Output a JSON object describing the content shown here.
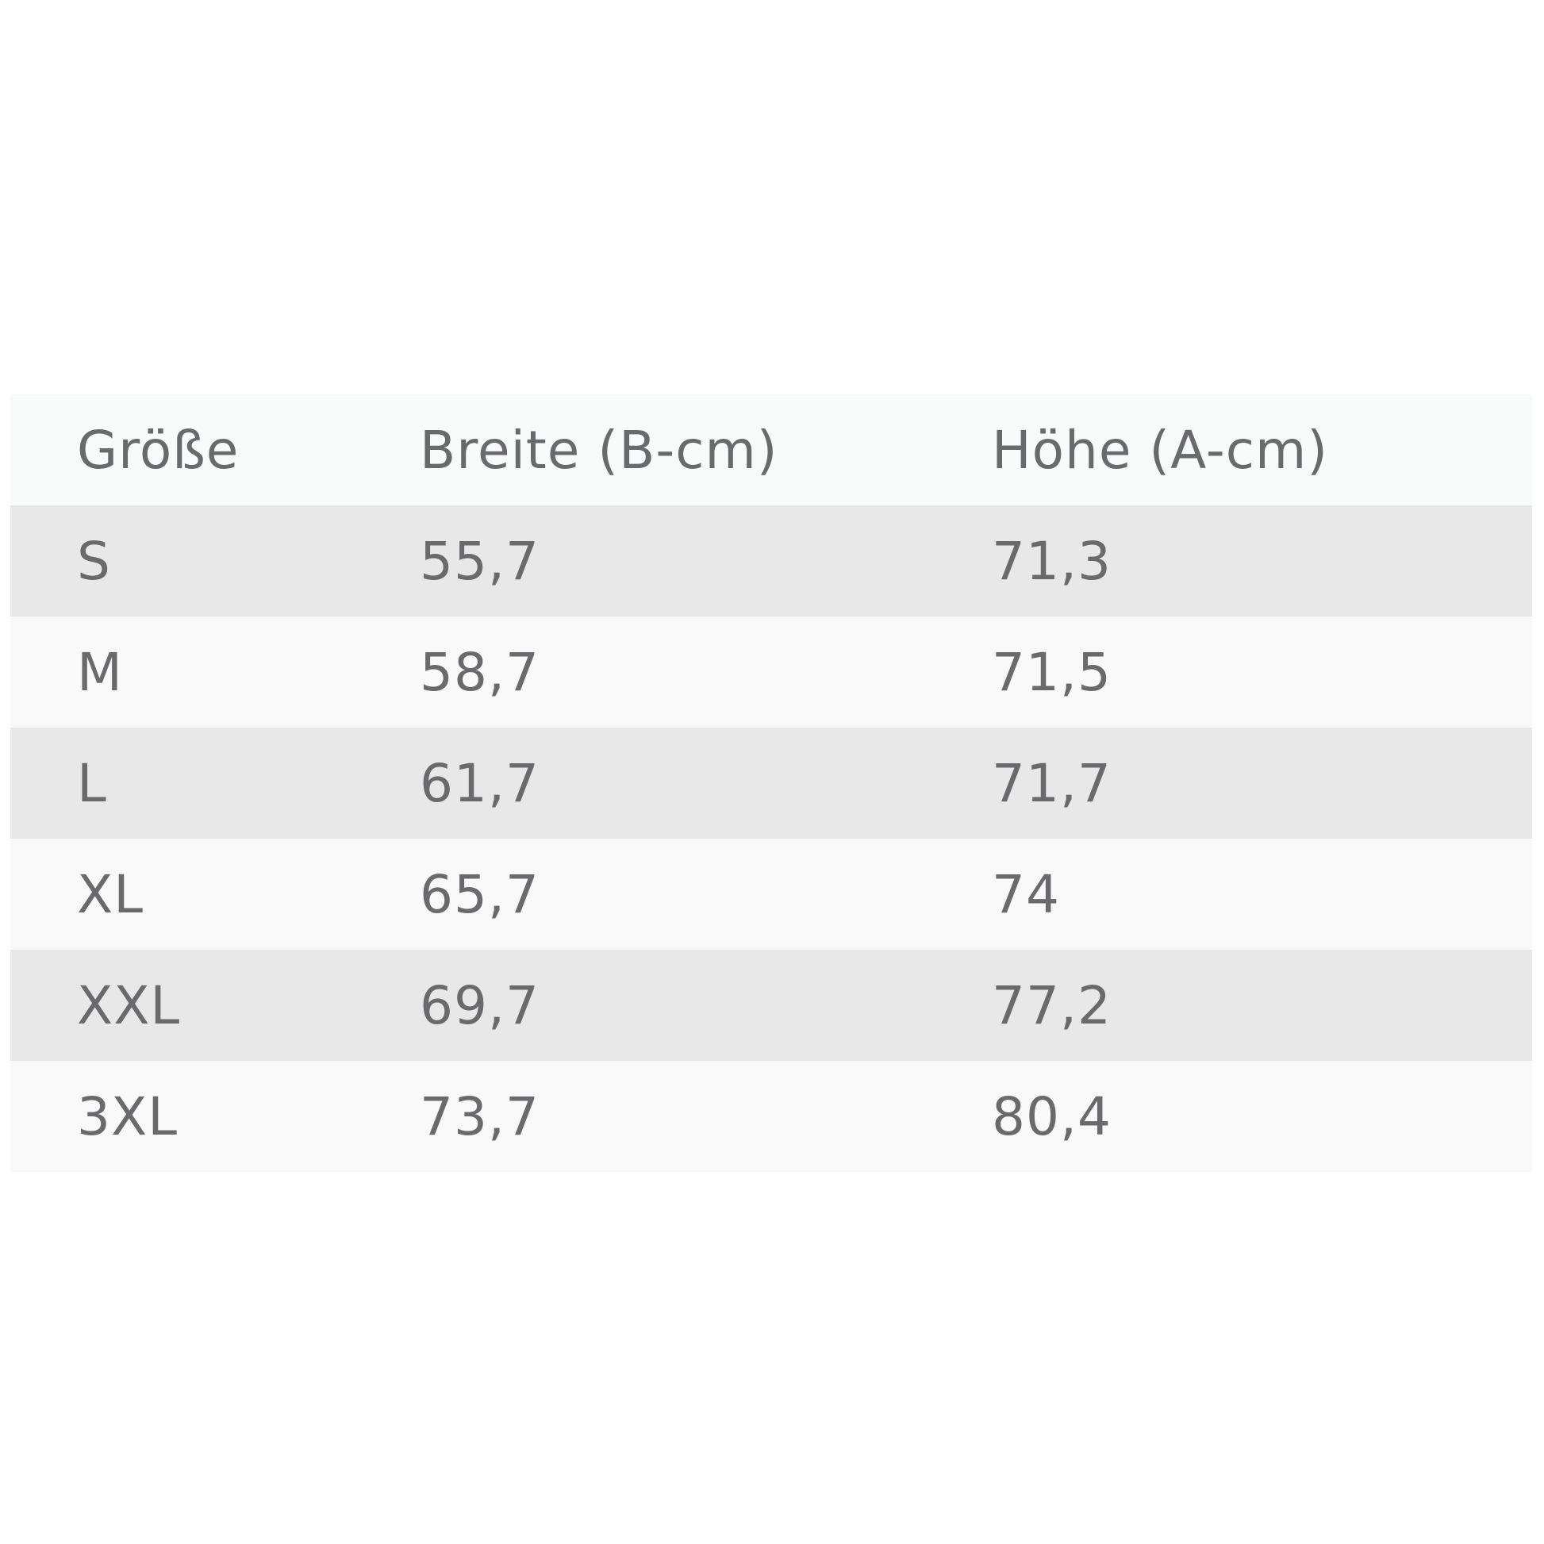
{
  "table": {
    "headers": [
      "Größe",
      "Breite (B-cm)",
      "Höhe (A-cm)"
    ],
    "rows": [
      [
        "S",
        "55,7",
        "71,3"
      ],
      [
        "M",
        "58,7",
        "71,5"
      ],
      [
        "L",
        "61,7",
        "71,7"
      ],
      [
        "XL",
        "65,7",
        "74"
      ],
      [
        "XXL",
        "69,7",
        "77,2"
      ],
      [
        "3XL",
        "73,7",
        "80,4"
      ]
    ]
  }
}
